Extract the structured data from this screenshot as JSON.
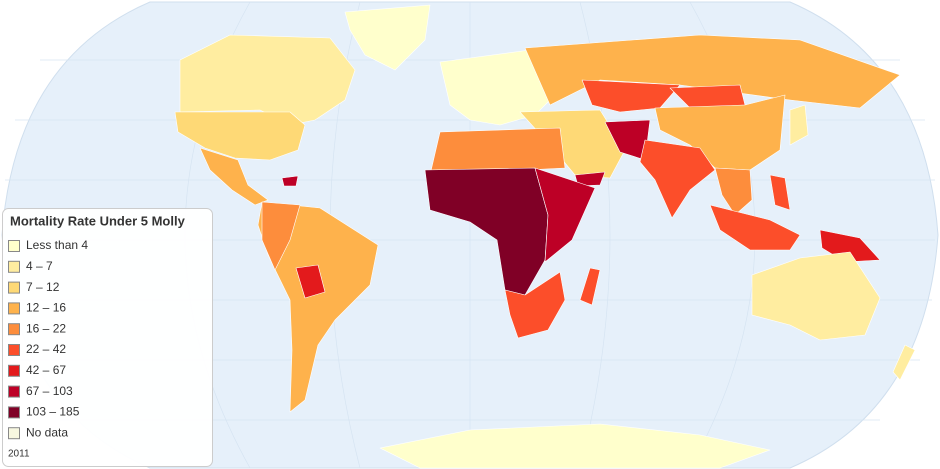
{
  "legend": {
    "title": "Mortality Rate Under 5 Molly",
    "items": [
      {
        "label": "Less than 4",
        "color": "#ffffcc"
      },
      {
        "label": "4 – 7",
        "color": "#ffeda0"
      },
      {
        "label": "7 – 12",
        "color": "#fed976"
      },
      {
        "label": "12 – 16",
        "color": "#feb24c"
      },
      {
        "label": "16 – 22",
        "color": "#fd8d3c"
      },
      {
        "label": "22 – 42",
        "color": "#fc4e2a"
      },
      {
        "label": "42 – 67",
        "color": "#e31a1c"
      },
      {
        "label": "67 – 103",
        "color": "#bd0026"
      },
      {
        "label": "103 – 185",
        "color": "#800026"
      },
      {
        "label": "No data",
        "color": "#f7f7e0"
      }
    ],
    "footnote": "2011"
  }
}
